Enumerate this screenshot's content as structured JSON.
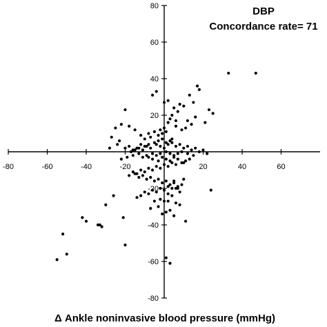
{
  "chart_data": {
    "type": "scatter",
    "title": "DBP",
    "subtitle": "Concordance rate= 71",
    "xlabel": "Δ Ankle noninvasive blood pressure (mmHg)",
    "ylabel": "",
    "xlim": [
      -80,
      80
    ],
    "ylim": [
      -80,
      80
    ],
    "xticks": [
      -80,
      -60,
      -40,
      -20,
      20,
      40,
      60
    ],
    "yticks": [
      80,
      60,
      40,
      20,
      -20,
      -40,
      -60,
      -80
    ],
    "grid": false,
    "series": [
      {
        "x": [
          47,
          33,
          18,
          17,
          15,
          13,
          25,
          23,
          21,
          16,
          10,
          7,
          5,
          4,
          12,
          14,
          11,
          9,
          6,
          3,
          2,
          1,
          0,
          -1,
          -2,
          -3,
          -5,
          -7,
          -8,
          -10,
          -12,
          -15,
          -18,
          -20,
          -22,
          -25,
          -27,
          -23,
          -24,
          -28,
          -4,
          -6,
          0,
          2,
          8,
          6,
          4,
          3,
          1,
          -1,
          -3,
          -5,
          -8,
          -10,
          -12,
          -14,
          -16,
          -18,
          -20,
          -17,
          -15,
          -13,
          -11,
          -9,
          -7,
          -4,
          -2,
          0,
          2,
          4,
          6,
          8,
          10,
          12,
          14,
          16,
          18,
          20,
          22,
          15,
          12,
          9,
          7,
          5,
          3,
          1,
          -2,
          -4,
          -6,
          -9,
          -11,
          -13,
          -16,
          -19,
          -22,
          -8,
          -6,
          -3,
          -1,
          1,
          3,
          5,
          7,
          9,
          11,
          13,
          6,
          4,
          2,
          0,
          -2,
          -4,
          -6,
          -8,
          -10,
          -12,
          -14,
          -16,
          -18,
          -15,
          -13,
          -11,
          -9,
          -7,
          -5,
          -3,
          -1,
          1,
          3,
          5,
          7,
          9,
          4,
          2,
          0,
          -2,
          -4,
          -6,
          -8,
          -10,
          -12,
          -14,
          -2,
          0,
          2,
          4,
          6,
          8,
          -3,
          -5,
          -7,
          3,
          1,
          -1,
          5,
          7,
          24,
          2,
          -30,
          -26,
          -21,
          -34,
          -32,
          -42,
          -40,
          -33,
          -20,
          -52,
          -50,
          -55,
          3,
          1,
          11,
          10,
          6,
          8,
          5,
          10
        ],
        "y": [
          43,
          43,
          34,
          36,
          27,
          31,
          21,
          23,
          16,
          19,
          25,
          22,
          24,
          20,
          17,
          15,
          13,
          12,
          14,
          18,
          16,
          11,
          13,
          10,
          12,
          9,
          11,
          8,
          10,
          7,
          9,
          12,
          14,
          23,
          15,
          13,
          8,
          6,
          4,
          2,
          33,
          31,
          27,
          28,
          26,
          17,
          7,
          6,
          5,
          7,
          6,
          5,
          4,
          3,
          4,
          2,
          1,
          3,
          2,
          0,
          1,
          2,
          1,
          3,
          2,
          4,
          3,
          2,
          4,
          5,
          3,
          4,
          2,
          3,
          1,
          2,
          0,
          1,
          -1,
          -2,
          -1,
          0,
          -1,
          -2,
          -1,
          0,
          -1,
          -2,
          -1,
          -2,
          -3,
          -1,
          -2,
          -3,
          -4,
          -3,
          -4,
          -5,
          -3,
          -4,
          -5,
          -3,
          -4,
          -6,
          -5,
          -4,
          -7,
          -6,
          -8,
          -7,
          -9,
          -8,
          -10,
          -9,
          -11,
          -10,
          -12,
          -11,
          -13,
          -12,
          -14,
          -13,
          -15,
          -14,
          -16,
          -15,
          -17,
          -16,
          -18,
          -17,
          -19,
          -18,
          -20,
          -19,
          -21,
          -20,
          -22,
          -21,
          -23,
          -22,
          -24,
          -25,
          -26,
          -27,
          -23,
          -24,
          -28,
          -29,
          -30,
          -27,
          -31,
          -32,
          -33,
          -34,
          -16,
          -20,
          -21,
          -27,
          -29,
          -24,
          -36,
          -40,
          -41,
          -36,
          -38,
          -40,
          -51,
          -45,
          -56,
          -59,
          -61,
          -58,
          -38,
          -15,
          -20,
          -22,
          -35,
          -6
        ]
      }
    ]
  }
}
